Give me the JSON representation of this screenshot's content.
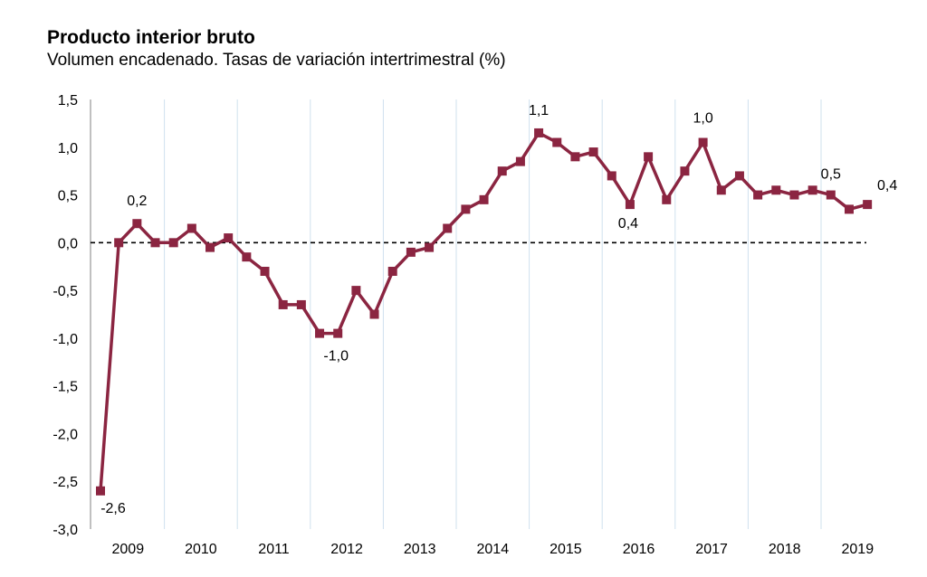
{
  "chart_data": {
    "type": "line",
    "title": "Producto interior bruto",
    "subtitle": "Volumen encadenado. Tasas de variación intertrimestral (%)",
    "xlabel": "",
    "ylabel": "",
    "ylim": [
      -3.0,
      1.5
    ],
    "y_ticks": [
      1.5,
      1.0,
      0.5,
      0.0,
      -0.5,
      -1.0,
      -1.5,
      -2.0,
      -2.5,
      -3.0
    ],
    "y_tick_labels": [
      "1,5",
      "1,0",
      "0,5",
      "0,0",
      "-0,5",
      "-1,0",
      "-1,5",
      "-2,0",
      "-2,5",
      "-3,0"
    ],
    "x_tick_labels": [
      "2009",
      "2010",
      "2011",
      "2012",
      "2013",
      "2014",
      "2015",
      "2016",
      "2017",
      "2018",
      "2019"
    ],
    "grid": "vertical lines at year boundaries",
    "reference_line": {
      "value": 0.0,
      "style": "dashed"
    },
    "legend": "none",
    "series_color": "#8b2541",
    "series": [
      {
        "values": [
          -2.6,
          0.0,
          0.2,
          0.0,
          0.0,
          0.15,
          -0.05,
          0.05,
          -0.15,
          -0.3,
          -0.65,
          -0.65,
          -0.95,
          -0.95,
          -0.5,
          -0.75,
          -0.3,
          -0.1,
          -0.05,
          0.15,
          0.35,
          0.45,
          0.75,
          0.85,
          1.15,
          1.05,
          0.9,
          0.95,
          0.7,
          0.4,
          0.9,
          0.45,
          0.75,
          1.05,
          0.55,
          0.7,
          0.5,
          0.55,
          0.5,
          0.55,
          0.5,
          0.35,
          0.4
        ]
      }
    ],
    "data_labels": [
      {
        "index": 0,
        "text": "-2,6"
      },
      {
        "index": 2,
        "text": "0,2"
      },
      {
        "index": 13,
        "text": "-1,0"
      },
      {
        "index": 24,
        "text": "1,1"
      },
      {
        "index": 29,
        "text": "0,4"
      },
      {
        "index": 33,
        "text": "1,0"
      },
      {
        "index": 40,
        "text": "0,5"
      },
      {
        "index": 42,
        "text": "0,4"
      }
    ]
  }
}
